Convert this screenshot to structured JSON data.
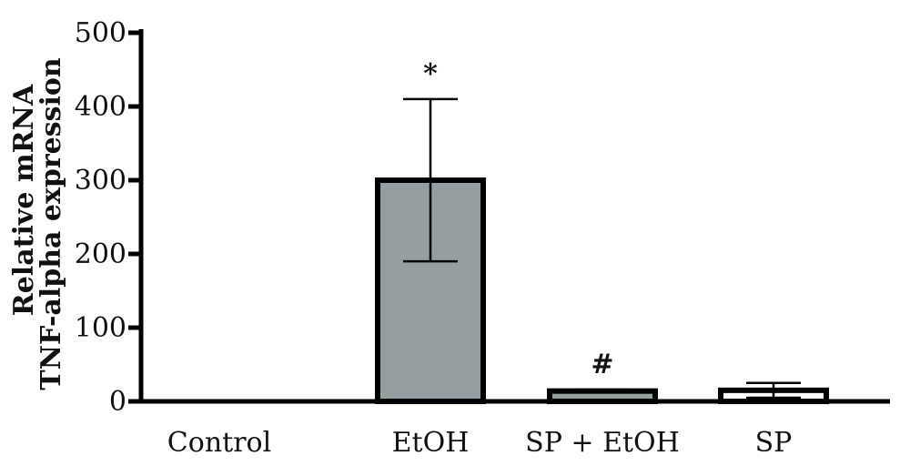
{
  "chart_data": {
    "type": "bar",
    "title": "",
    "xlabel": "",
    "ylabel_lines": [
      "Relative mRNA",
      "TNF-alpha expression"
    ],
    "categories": [
      "Control",
      "EtOH",
      "SP + EtOH",
      "SP"
    ],
    "values": [
      0,
      300,
      14,
      15
    ],
    "errors": [
      0,
      110,
      2,
      10
    ],
    "annotations": [
      "",
      "*",
      "#",
      ""
    ],
    "bar_colors": [
      "#ffffff",
      "#959fa1",
      "#959fa1",
      "#ffffff"
    ],
    "ylim": [
      0,
      500
    ],
    "yticks": [
      0,
      100,
      200,
      300,
      400,
      500
    ],
    "grid": false,
    "legend": "none"
  }
}
